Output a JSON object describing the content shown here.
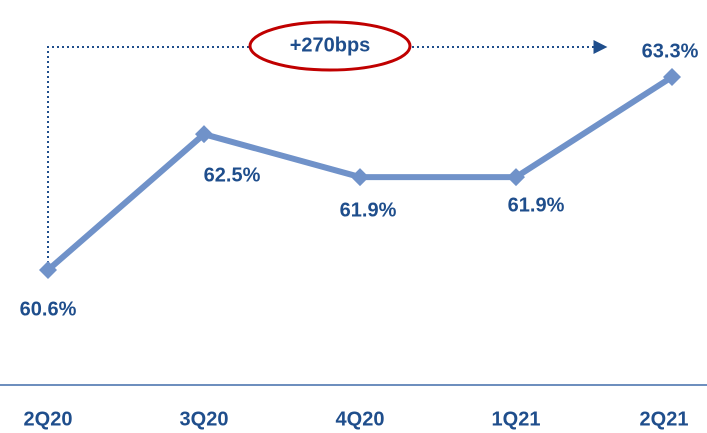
{
  "chart_data": {
    "type": "line",
    "categories": [
      "2Q20",
      "3Q20",
      "4Q20",
      "1Q21",
      "2Q21"
    ],
    "values": [
      60.6,
      62.5,
      61.9,
      61.9,
      63.3
    ],
    "value_labels": [
      "60.6%",
      "62.5%",
      "61.9%",
      "61.9%",
      "63.3%"
    ],
    "color": "#7092c9",
    "annotation": "+270bps"
  }
}
